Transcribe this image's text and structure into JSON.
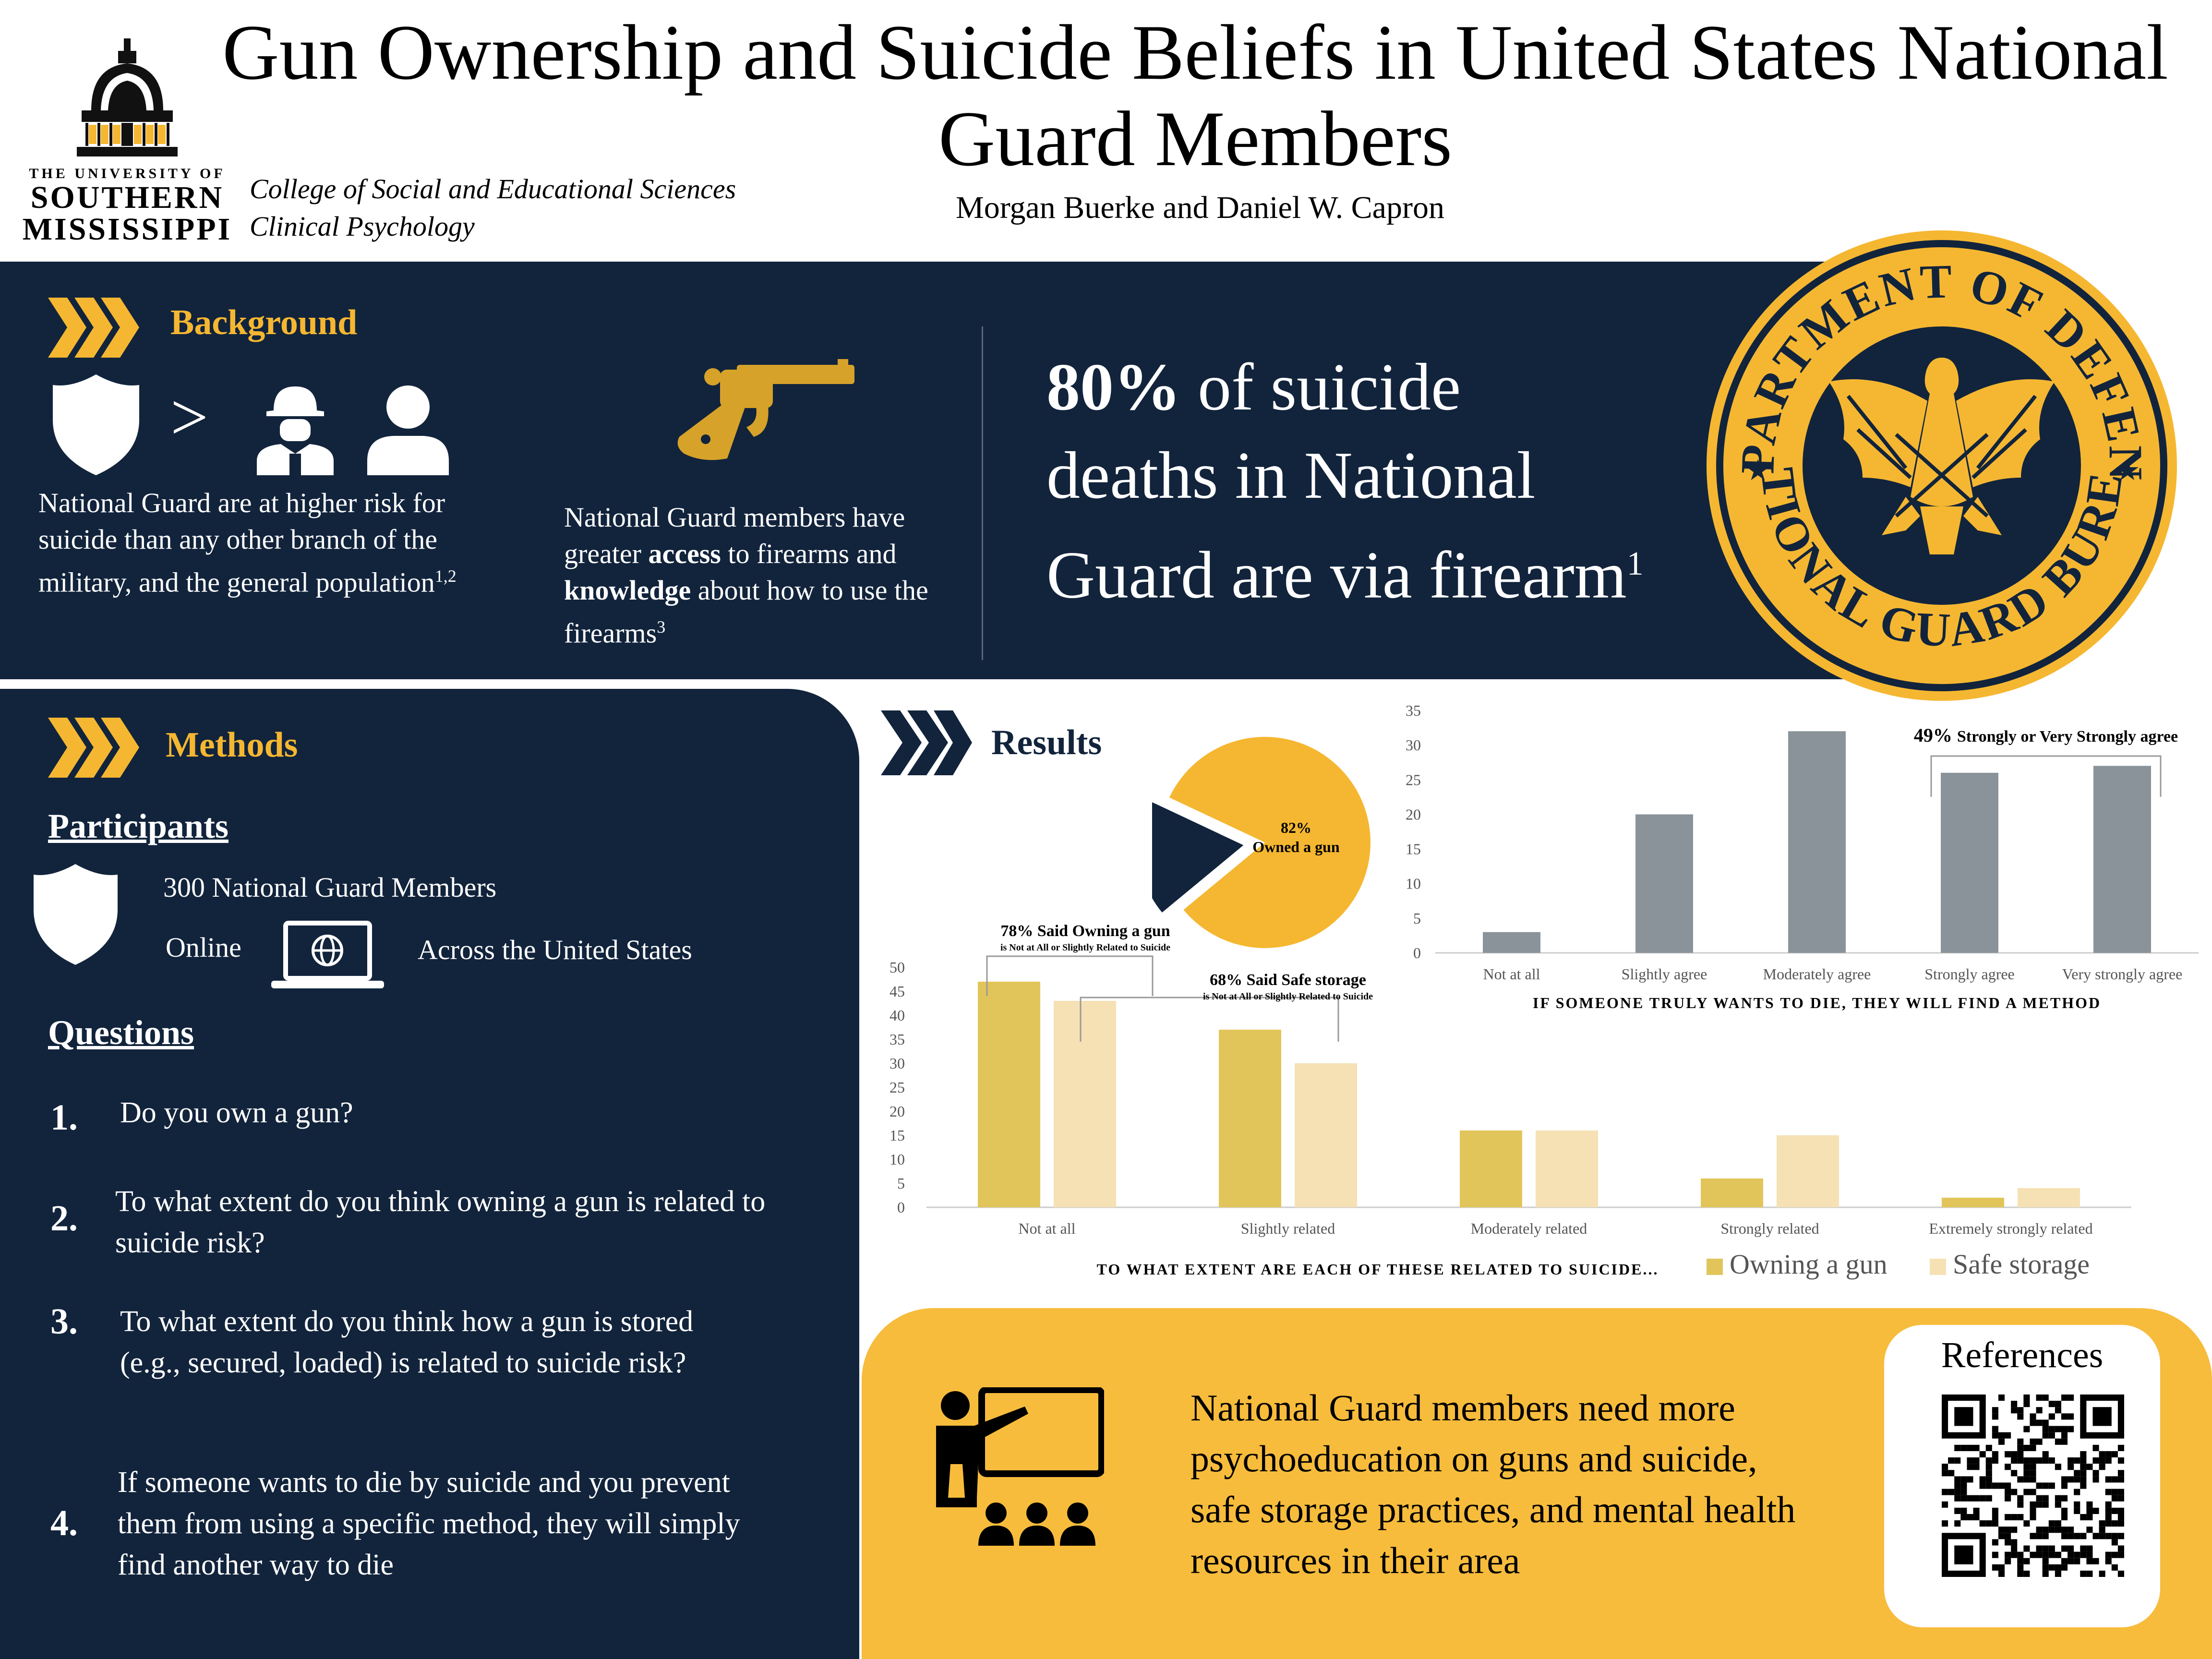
{
  "header": {
    "title_line1": "Gun Ownership and Suicide Beliefs in United States National",
    "title_line2": "Guard Members",
    "authors": "Morgan Buerke and Daniel W. Capron",
    "college_line1": "College of Social and Educational Sciences",
    "college_line2": "Clinical Psychology",
    "university_small": "THE UNIVERSITY OF",
    "university_line1": "SOUTHERN",
    "university_line2": "MISSISSIPPI"
  },
  "background": {
    "heading": "Background",
    "greater_than": ">",
    "risk_text": "National Guard are at higher risk for suicide than any other branch of the military, and the general population",
    "risk_sup": "1,2",
    "access_pre": "National Guard members have greater ",
    "access_bold": "access",
    "access_mid": " to firearms and ",
    "knowledge_bold": "knowledge",
    "access_post": " about how to use the firearms",
    "access_sup": "3",
    "stat_pct": "80%",
    "stat_rest1": " of suicide",
    "stat_line2": "deaths in National",
    "stat_line3": "Guard are via firearm",
    "stat_sup": "1"
  },
  "seal": {
    "top_text": "DEPARTMENT OF DEFENSE",
    "bottom_text": "NATIONAL GUARD BUREAU",
    "colors": {
      "gold": "#f5b731",
      "navy": "#12243c"
    }
  },
  "methods": {
    "heading": "Methods",
    "participants_heading": "Participants",
    "participants_count": "300 National Guard Members",
    "online": "Online",
    "across": "Across the United States",
    "questions_heading": "Questions",
    "questions": [
      {
        "num": "1.",
        "text": "Do you own a gun?"
      },
      {
        "num": "2.",
        "text": "To what extent do you think owning a gun is related to suicide risk?"
      },
      {
        "num": "3.",
        "text": "To what extent do you think how a gun is stored (e.g., secured, loaded) is related to suicide risk?"
      },
      {
        "num": "4.",
        "text": "If someone wants to die by suicide and you prevent them from using a specific method, they will simply find another way to die"
      }
    ]
  },
  "results": {
    "heading": "Results",
    "pie_pct": "82%",
    "pie_label": "Owned a gun"
  },
  "chart_data": [
    {
      "type": "pie",
      "values": [
        82,
        18
      ],
      "labels": [
        "Owned a gun",
        ""
      ],
      "data_label": "82%",
      "colors": [
        "#f5b731",
        "#12243c"
      ]
    },
    {
      "type": "bar",
      "categories": [
        "Not at all",
        "Slightly agree",
        "Moderately agree",
        "Strongly agree",
        "Very strongly agree"
      ],
      "values": [
        3,
        20,
        32,
        26,
        27
      ],
      "xlabel": "IF SOMEONE TRULY WANTS TO DIE, THEY WILL FIND A METHOD",
      "ylim": [
        0,
        35
      ],
      "yticks": [
        0,
        5,
        10,
        15,
        20,
        25,
        30,
        35
      ],
      "annotation": "49% Strongly or Very Strongly agree",
      "color": "#8a9399"
    },
    {
      "type": "bar",
      "categories": [
        "Not at all",
        "Slightly related",
        "Moderately related",
        "Strongly related",
        "Extremely strongly related"
      ],
      "series": [
        {
          "name": "Owning a gun",
          "values": [
            47,
            37,
            16,
            6,
            2
          ],
          "color": "#e2c55a"
        },
        {
          "name": "Safe storage",
          "values": [
            43,
            30,
            16,
            15,
            4
          ],
          "color": "#f5e1b4"
        }
      ],
      "xlabel": "TO WHAT EXTENT ARE EACH OF THESE RELATED TO SUICIDE...",
      "ylim": [
        0,
        50
      ],
      "yticks": [
        0,
        5,
        10,
        15,
        20,
        25,
        30,
        35,
        40,
        45,
        50
      ],
      "annotations": [
        {
          "bold": "78% Said Owning a gun",
          "small": "is Not at All or Slightly Related to Suicide"
        },
        {
          "bold": "68% Said Safe storage",
          "small": "is Not at All or Slightly Related to Suicide"
        }
      ],
      "legend_position": "bottom-right"
    }
  ],
  "conclusion": {
    "text": "National Guard members need more psychoeducation on guns and suicide, safe storage practices, and mental health resources in their area",
    "references_title": "References"
  }
}
